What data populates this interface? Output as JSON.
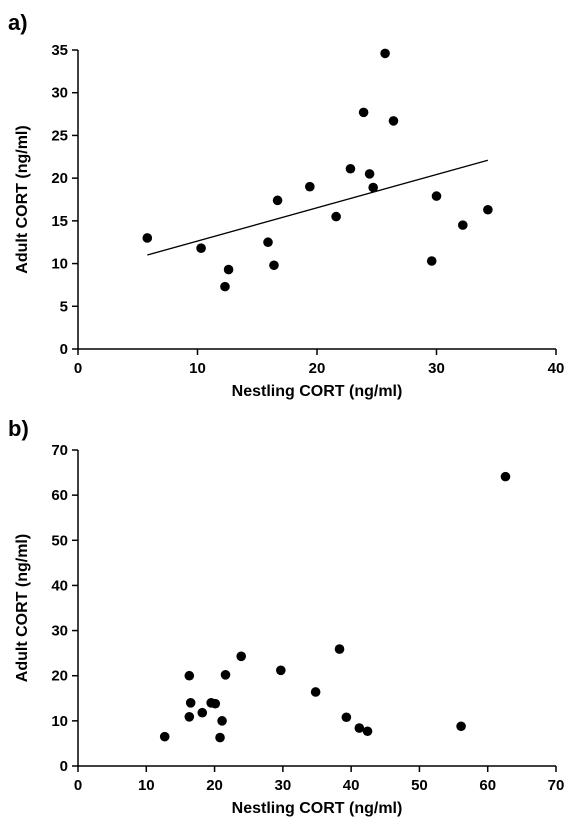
{
  "chart_data": [
    {
      "panel_label": "a)",
      "type": "scatter",
      "xlabel": "Nestling CORT (ng/ml)",
      "ylabel": "Adult CORT (ng/ml)",
      "xlim": [
        0,
        40
      ],
      "ylim": [
        0,
        35
      ],
      "xticks": [
        0,
        10,
        20,
        30,
        40
      ],
      "yticks": [
        0,
        5,
        10,
        15,
        20,
        25,
        30,
        35
      ],
      "points": [
        {
          "x": 5.8,
          "y": 13.0
        },
        {
          "x": 10.3,
          "y": 11.8
        },
        {
          "x": 12.3,
          "y": 7.3
        },
        {
          "x": 12.6,
          "y": 9.3
        },
        {
          "x": 15.9,
          "y": 12.5
        },
        {
          "x": 16.4,
          "y": 9.8
        },
        {
          "x": 16.7,
          "y": 17.4
        },
        {
          "x": 19.4,
          "y": 19.0
        },
        {
          "x": 21.6,
          "y": 15.5
        },
        {
          "x": 22.8,
          "y": 21.1
        },
        {
          "x": 23.9,
          "y": 27.7
        },
        {
          "x": 24.4,
          "y": 20.5
        },
        {
          "x": 24.7,
          "y": 18.9
        },
        {
          "x": 25.7,
          "y": 34.6
        },
        {
          "x": 26.4,
          "y": 26.7
        },
        {
          "x": 29.6,
          "y": 10.3
        },
        {
          "x": 30.0,
          "y": 17.9
        },
        {
          "x": 32.2,
          "y": 14.5
        },
        {
          "x": 34.3,
          "y": 16.3
        }
      ],
      "trendline": {
        "x": [
          5.8,
          34.3
        ],
        "y": [
          11.0,
          22.1
        ]
      },
      "marker_color": "#000000"
    },
    {
      "panel_label": "b)",
      "type": "scatter",
      "xlabel": "Nestling CORT (ng/ml)",
      "ylabel": "Adult CORT (ng/ml)",
      "xlim": [
        0,
        70
      ],
      "ylim": [
        0,
        70
      ],
      "xticks": [
        0,
        10,
        20,
        30,
        40,
        50,
        60,
        70
      ],
      "yticks": [
        0,
        10,
        20,
        30,
        40,
        50,
        60,
        70
      ],
      "points": [
        {
          "x": 12.7,
          "y": 6.5
        },
        {
          "x": 16.3,
          "y": 20.0
        },
        {
          "x": 16.5,
          "y": 14.0
        },
        {
          "x": 16.3,
          "y": 10.9
        },
        {
          "x": 18.2,
          "y": 11.8
        },
        {
          "x": 19.5,
          "y": 14.0
        },
        {
          "x": 20.1,
          "y": 13.8
        },
        {
          "x": 20.8,
          "y": 6.3
        },
        {
          "x": 21.1,
          "y": 10.0
        },
        {
          "x": 21.6,
          "y": 20.2
        },
        {
          "x": 23.9,
          "y": 24.3
        },
        {
          "x": 29.7,
          "y": 21.2
        },
        {
          "x": 34.8,
          "y": 16.4
        },
        {
          "x": 38.3,
          "y": 25.9
        },
        {
          "x": 39.3,
          "y": 10.8
        },
        {
          "x": 41.2,
          "y": 8.4
        },
        {
          "x": 42.4,
          "y": 7.7
        },
        {
          "x": 56.1,
          "y": 8.8
        },
        {
          "x": 62.6,
          "y": 64.1
        }
      ],
      "marker_color": "#000000"
    }
  ]
}
